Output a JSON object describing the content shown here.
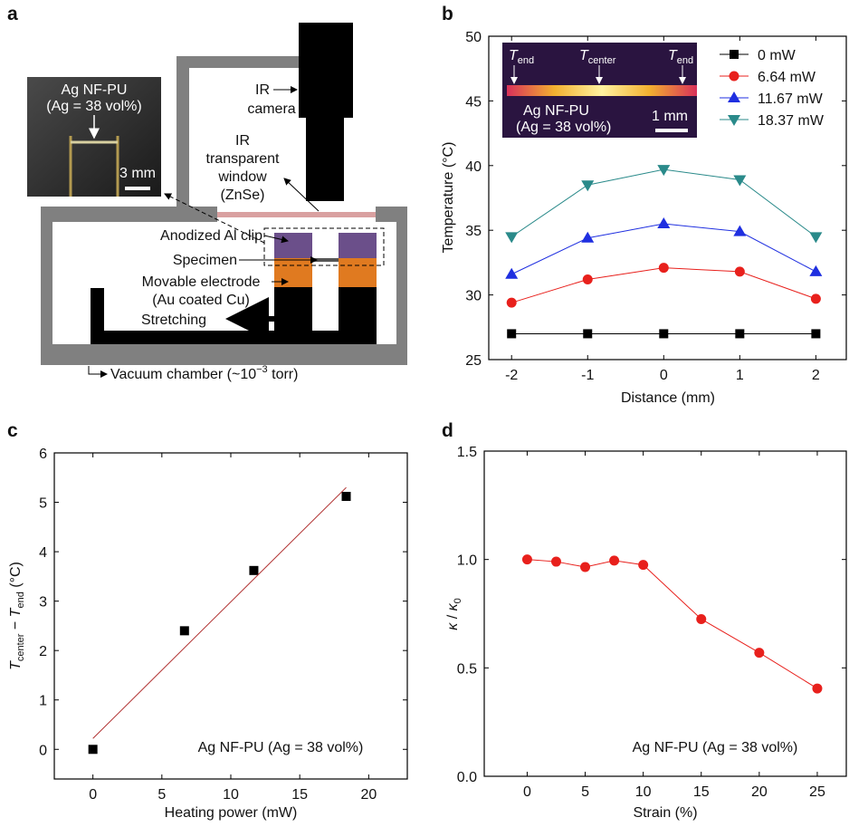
{
  "diagram": {
    "panel_label": "a",
    "photo": {
      "title": "Ag NF-PU",
      "subtitle": "(Ag = 38 vol%)",
      "scale": "3 mm"
    },
    "labels": {
      "camera_1": "IR",
      "camera_2": "camera",
      "window_1": "IR",
      "window_2": "transparent",
      "window_3": "window",
      "window_4": "(ZnSe)",
      "clip": "Anodized Al clip",
      "specimen": "Specimen",
      "electrode_1": "Movable electrode",
      "electrode_2": "(Au coated Cu)",
      "stretching": "Stretching",
      "chamber": "Vacuum chamber (~10",
      "chamber_exp": "−3",
      "chamber_end": " torr)"
    }
  },
  "chart_data": [
    {
      "type": "line",
      "panel_label": "b",
      "x": [
        -2,
        -1,
        0,
        1,
        2
      ],
      "xlim": [
        -2.3,
        2.4
      ],
      "xticks": [
        -2,
        -1,
        0,
        1,
        2
      ],
      "ylim": [
        25,
        50
      ],
      "yticks": [
        25,
        30,
        35,
        40,
        45,
        50
      ],
      "xlabel": "Distance (mm)",
      "ylabel": "Temperature (°C)",
      "legend": "upper right",
      "series": [
        {
          "name": "0 mW",
          "color": "#000000",
          "marker": "square",
          "values": [
            27,
            27,
            27,
            27,
            27
          ]
        },
        {
          "name": "6.64 mW",
          "color": "#e8201c",
          "marker": "circle",
          "values": [
            29.4,
            31.2,
            32.1,
            31.8,
            29.7
          ]
        },
        {
          "name": "11.67 mW",
          "color": "#1f2fe0",
          "marker": "triangle-up",
          "values": [
            31.6,
            34.4,
            35.5,
            34.9,
            31.8
          ]
        },
        {
          "name": "18.37 mW",
          "color": "#2a8a8a",
          "marker": "triangle-down",
          "values": [
            34.5,
            38.5,
            39.7,
            38.9,
            34.5
          ]
        }
      ],
      "inset": {
        "t_end_left": {
          "symbol": "T",
          "sub": "end"
        },
        "t_center": {
          "symbol": "T",
          "sub": "center"
        },
        "t_end_right": {
          "symbol": "T",
          "sub": "end"
        },
        "title": "Ag NF-PU",
        "subtitle": "(Ag = 38 vol%)",
        "scale": "1 mm"
      }
    },
    {
      "type": "scatter",
      "panel_label": "c",
      "xlim": [
        -2.8,
        22.8
      ],
      "xticks": [
        0,
        5,
        10,
        15,
        20
      ],
      "ylim": [
        -0.6,
        6
      ],
      "yticks": [
        0,
        1,
        2,
        3,
        4,
        5,
        6
      ],
      "xlabel": "Heating power (mW)",
      "ylabel": {
        "symbol_1": "T",
        "sub_1": "center",
        "minus": " − ",
        "symbol_2": "T",
        "sub_2": "end",
        "unit": " (°C)"
      },
      "annotation": "Ag NF-PU  (Ag = 38 vol%)",
      "series": [
        {
          "color": "#000000",
          "marker": "square",
          "line": false,
          "x": [
            0,
            6.64,
            11.67,
            18.37
          ],
          "values": [
            0,
            2.4,
            3.62,
            5.12
          ]
        },
        {
          "color": "#b03030",
          "marker": "none",
          "line": true,
          "x": [
            0,
            18.37
          ],
          "values": [
            0.22,
            5.3
          ]
        }
      ]
    },
    {
      "type": "line",
      "panel_label": "d",
      "x": [
        0,
        2.5,
        5,
        7.5,
        10,
        15,
        20,
        25
      ],
      "xlim": [
        -3.7,
        27.5
      ],
      "xticks": [
        0,
        5,
        10,
        15,
        20,
        25
      ],
      "ylim": [
        0,
        1.5
      ],
      "yticks": [
        {
          "value": 0,
          "label": "0.0"
        },
        {
          "value": 0.5,
          "label": "0.5"
        },
        {
          "value": 1,
          "label": "1.0"
        },
        {
          "value": 1.5,
          "label": "1.5"
        }
      ],
      "xlabel": "Strain (%)",
      "ylabel": {
        "symbol_1": "κ",
        "slash": " / ",
        "symbol_2": "κ",
        "sub": "0"
      },
      "annotation": "Ag NF-PU  (Ag = 38 vol%)",
      "series": [
        {
          "color": "#e8201c",
          "marker": "circle",
          "values": [
            1.0,
            0.99,
            0.965,
            0.995,
            0.975,
            0.725,
            0.57,
            0.405
          ]
        }
      ]
    }
  ]
}
